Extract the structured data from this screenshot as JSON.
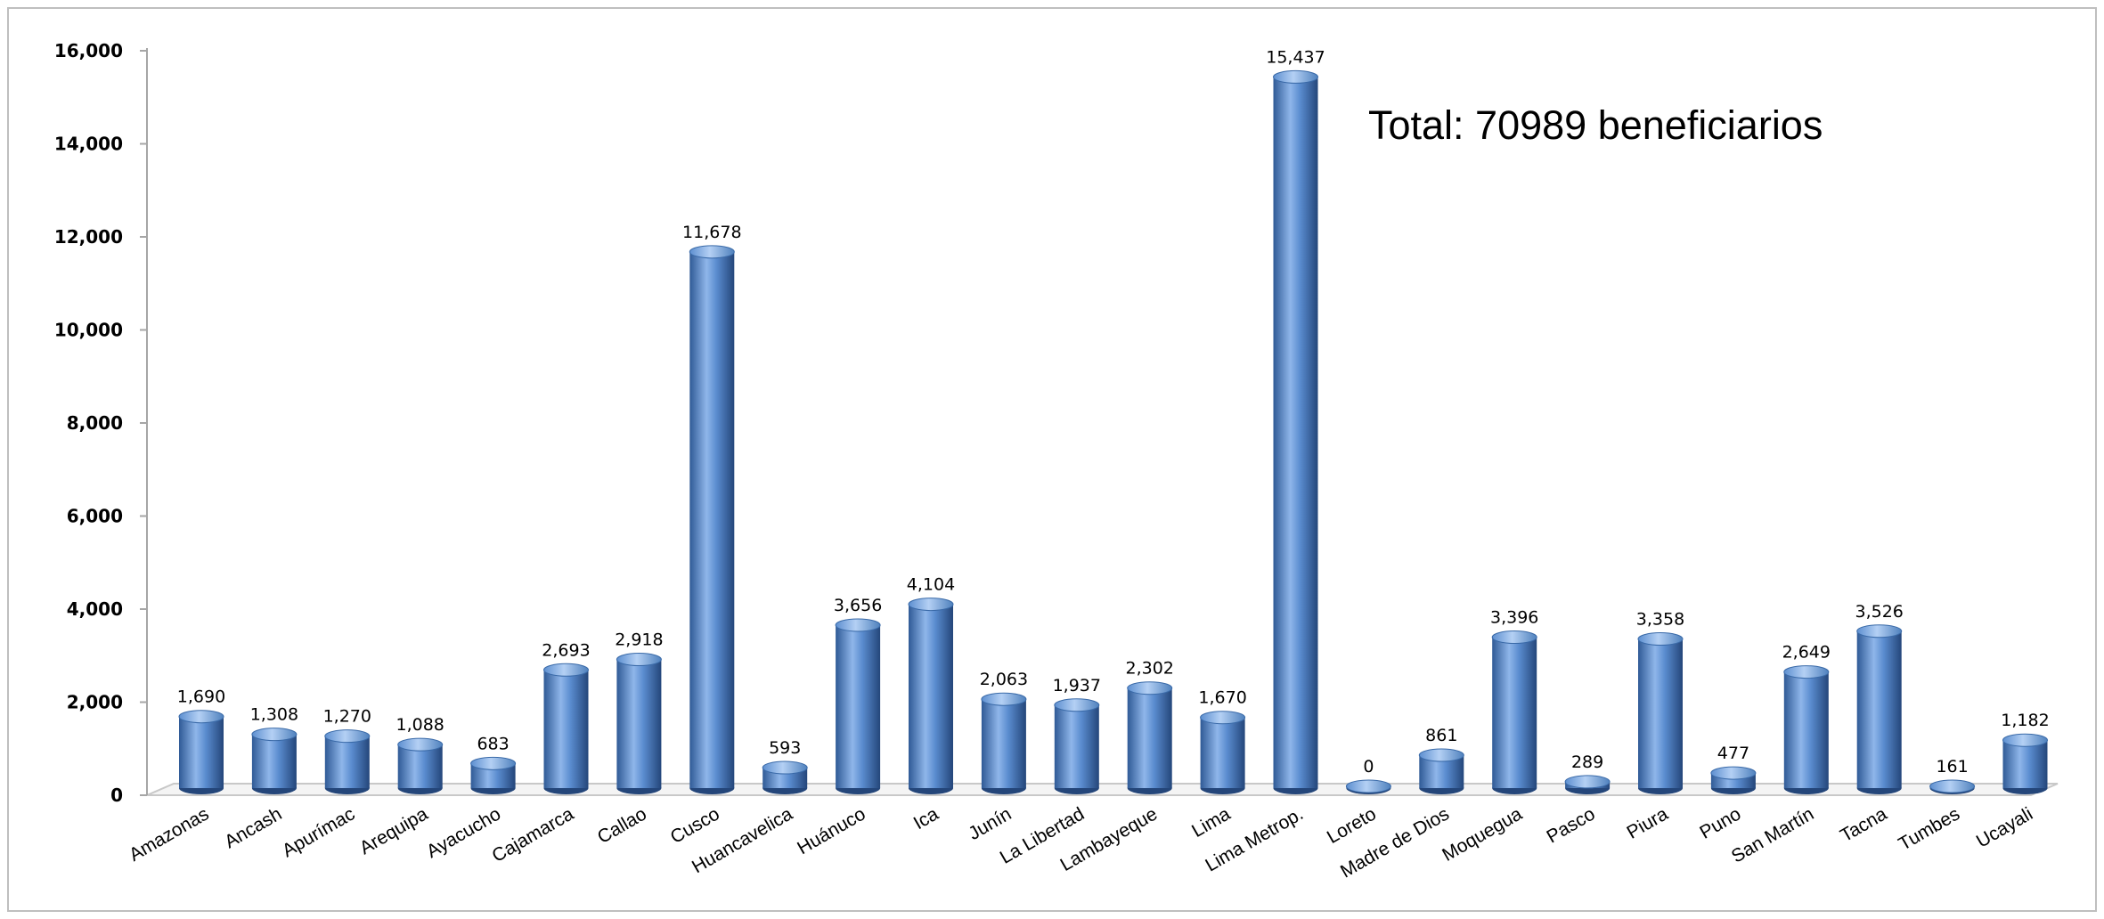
{
  "chart_data": {
    "type": "bar",
    "categories": [
      "Amazonas",
      "Ancash",
      "Apurímac",
      "Arequipa",
      "Ayacucho",
      "Cajamarca",
      "Callao",
      "Cusco",
      "Huancavelica",
      "Huánuco",
      "Ica",
      "Junín",
      "La Libertad",
      "Lambayeque",
      "Lima",
      "Lima Metrop.",
      "Loreto",
      "Madre de Dios",
      "Moquegua",
      "Pasco",
      "Piura",
      "Puno",
      "San Martín",
      "Tacna",
      "Tumbes",
      "Ucayali"
    ],
    "values": [
      1690,
      1308,
      1270,
      1088,
      683,
      2693,
      2918,
      11678,
      593,
      3656,
      4104,
      2063,
      1937,
      2302,
      1670,
      15437,
      0,
      861,
      3396,
      289,
      3358,
      477,
      2649,
      3526,
      161,
      1182
    ],
    "data_labels": [
      "1,690",
      "1,308",
      "1,270",
      "1,088",
      "683",
      "2,693",
      "2,918",
      "11,678",
      "593",
      "3,656",
      "4,104",
      "2,063",
      "1,937",
      "2,302",
      "1,670",
      "15,437",
      "0",
      "861",
      "3,396",
      "289",
      "3,358",
      "477",
      "2,649",
      "3,526",
      "161",
      "1,182"
    ],
    "yticks": [
      "0",
      "2,000",
      "4,000",
      "6,000",
      "8,000",
      "10,000",
      "12,000",
      "14,000",
      "16,000"
    ],
    "ylim": [
      0,
      16000
    ],
    "annotation": "Total: 70989 beneficiarios",
    "title": "",
    "xlabel": "",
    "ylabel": "",
    "grid": false,
    "bar_color": "#4f81bd",
    "bar_shade_dark": "#24467a",
    "bar_highlight": "#9cc0ee",
    "floor_color": "#c8c8c8"
  }
}
